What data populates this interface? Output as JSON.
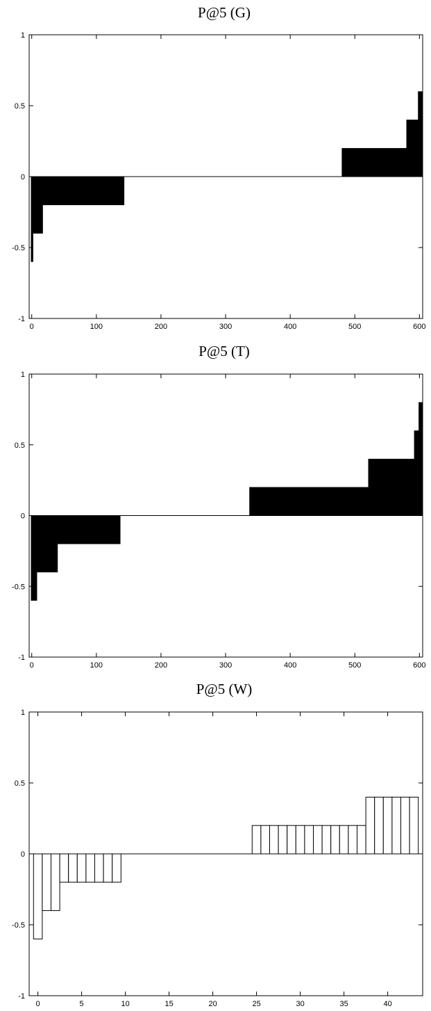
{
  "chart_data": [
    {
      "type": "bar",
      "title": "P@5 (G)",
      "xlim": [
        -4,
        605
      ],
      "ylim": [
        -1,
        1
      ],
      "xticks": [
        0,
        100,
        200,
        300,
        400,
        500,
        600
      ],
      "yticks": [
        -1,
        -0.5,
        0,
        0.5,
        1
      ],
      "ytick_labels": [
        "-1",
        "-0.5",
        "0",
        "0.5",
        "1"
      ],
      "fill": "#000000",
      "segments": [
        {
          "x_start": -1,
          "x_end": 2,
          "value": -0.6
        },
        {
          "x_start": 2,
          "x_end": 17,
          "value": -0.4
        },
        {
          "x_start": 17,
          "x_end": 143,
          "value": -0.2
        },
        {
          "x_start": 143,
          "x_end": 480,
          "value": 0
        },
        {
          "x_start": 480,
          "x_end": 580,
          "value": 0.2
        },
        {
          "x_start": 580,
          "x_end": 598,
          "value": 0.4
        },
        {
          "x_start": 598,
          "x_end": 605,
          "value": 0.6
        }
      ]
    },
    {
      "type": "bar",
      "title": "P@5 (T)",
      "xlim": [
        -4,
        605
      ],
      "ylim": [
        -1,
        1
      ],
      "xticks": [
        0,
        100,
        200,
        300,
        400,
        500,
        600
      ],
      "yticks": [
        -1,
        -0.5,
        0,
        0.5,
        1
      ],
      "ytick_labels": [
        "-1",
        "-0.5",
        "0",
        "0.5",
        "1"
      ],
      "fill": "#000000",
      "segments": [
        {
          "x_start": -1,
          "x_end": 8,
          "value": -0.6
        },
        {
          "x_start": 8,
          "x_end": 40,
          "value": -0.4
        },
        {
          "x_start": 40,
          "x_end": 137,
          "value": -0.2
        },
        {
          "x_start": 137,
          "x_end": 337,
          "value": 0
        },
        {
          "x_start": 337,
          "x_end": 521,
          "value": 0.2
        },
        {
          "x_start": 521,
          "x_end": 592,
          "value": 0.4
        },
        {
          "x_start": 592,
          "x_end": 599,
          "value": 0.6
        },
        {
          "x_start": 599,
          "x_end": 605,
          "value": 0.8
        }
      ]
    },
    {
      "type": "bar",
      "title": "P@5 (W)",
      "xlim": [
        -1,
        44
      ],
      "ylim": [
        -1,
        1
      ],
      "xticks": [
        0,
        5,
        10,
        15,
        20,
        25,
        30,
        35,
        40
      ],
      "yticks": [
        -1,
        -0.5,
        0,
        0.5,
        1
      ],
      "ytick_labels": [
        "-1",
        "-0.5",
        "0",
        "0.5",
        "1"
      ],
      "fill": "none",
      "categories": [
        0,
        1,
        2,
        3,
        4,
        5,
        6,
        7,
        8,
        9,
        10,
        11,
        12,
        13,
        14,
        15,
        16,
        17,
        18,
        19,
        20,
        21,
        22,
        23,
        24,
        25,
        26,
        27,
        28,
        29,
        30,
        31,
        32,
        33,
        34,
        35,
        36,
        37,
        38,
        39,
        40,
        41,
        42,
        43
      ],
      "values": [
        -0.6,
        -0.4,
        -0.4,
        -0.2,
        -0.2,
        -0.2,
        -0.2,
        -0.2,
        -0.2,
        -0.2,
        0,
        0,
        0,
        0,
        0,
        0,
        0,
        0,
        0,
        0,
        0,
        0,
        0,
        0,
        0,
        0.2,
        0.2,
        0.2,
        0.2,
        0.2,
        0.2,
        0.2,
        0.2,
        0.2,
        0.2,
        0.2,
        0.2,
        0.2,
        0.4,
        0.4,
        0.4,
        0.4,
        0.4,
        0.4
      ]
    }
  ]
}
